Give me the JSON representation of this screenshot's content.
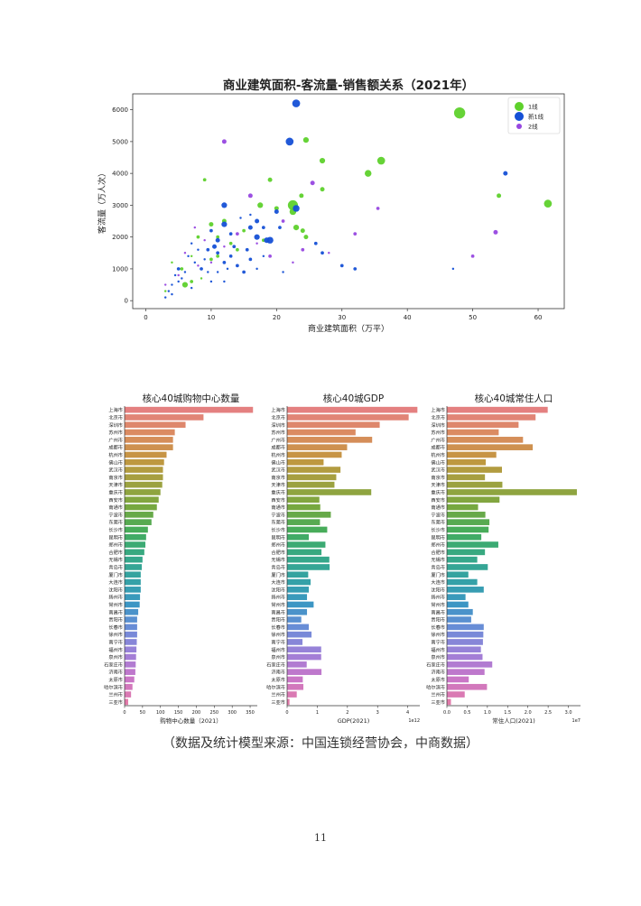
{
  "chart_data": [
    {
      "type": "scatter",
      "title": "商业建筑面积-客流量-销售额关系（2021年）",
      "xlabel": "商业建筑面积（万平）",
      "ylabel": "客流量（万人次）",
      "xlim": [
        -2,
        64
      ],
      "ylim": [
        -250,
        6500
      ],
      "xticks": [
        0,
        10,
        20,
        30,
        40,
        50,
        60
      ],
      "yticks": [
        0,
        1000,
        2000,
        3000,
        4000,
        5000,
        6000
      ],
      "grid": false,
      "legend_position": "top-right",
      "size_meaning": "sales",
      "series": [
        {
          "name": "1线",
          "color": "#5ed12c",
          "points": [
            [
              48,
              5900,
              10
            ],
            [
              61.5,
              3050,
              7
            ],
            [
              36,
              4400,
              7
            ],
            [
              34,
              4000,
              6
            ],
            [
              27,
              4400,
              5
            ],
            [
              24.5,
              5050,
              5
            ],
            [
              22.5,
              3000,
              9
            ],
            [
              22.5,
              2800,
              6
            ],
            [
              54,
              3300,
              4
            ],
            [
              27,
              3500,
              4
            ],
            [
              23.8,
              3300,
              4
            ],
            [
              19,
              3800,
              4
            ],
            [
              17.5,
              3000,
              5
            ],
            [
              20,
              2900,
              4
            ],
            [
              9,
              3800,
              3
            ],
            [
              12,
              2500,
              4
            ],
            [
              10,
              2400,
              4
            ],
            [
              23,
              2300,
              5
            ],
            [
              24,
              2200,
              4
            ],
            [
              24.5,
              2000,
              4
            ],
            [
              15,
              2200,
              3
            ],
            [
              8,
              2000,
              3
            ],
            [
              18,
              1900,
              3
            ],
            [
              11,
              2000,
              3
            ],
            [
              13,
              1800,
              3
            ],
            [
              11,
              1400,
              3
            ],
            [
              14,
              1600,
              3
            ],
            [
              10,
              1300,
              3
            ],
            [
              7,
              1400,
              2
            ],
            [
              6,
              500,
              5
            ],
            [
              5.5,
              1000,
              3
            ],
            [
              7,
              600,
              3
            ],
            [
              4,
              1200,
              2
            ],
            [
              3,
              300,
              2
            ],
            [
              8.5,
              700,
              2
            ]
          ]
        },
        {
          "name": "新1线",
          "color": "#1550d6",
          "points": [
            [
              23,
              6200,
              7
            ],
            [
              22,
              5000,
              7
            ],
            [
              23,
              2900,
              6
            ],
            [
              55,
              4000,
              4
            ],
            [
              12,
              3000,
              5
            ],
            [
              12,
              2400,
              5
            ],
            [
              20,
              2800,
              4
            ],
            [
              19,
              1900,
              6
            ],
            [
              18.5,
              1900,
              5
            ],
            [
              17,
              2000,
              5
            ],
            [
              27,
              1500,
              3
            ],
            [
              30,
              1100,
              3
            ],
            [
              32,
              1000,
              3
            ],
            [
              47,
              1000,
              2
            ],
            [
              16,
              2300,
              4
            ],
            [
              17,
              2500,
              4
            ],
            [
              18,
              2300,
              3
            ],
            [
              13,
              2100,
              3
            ],
            [
              11,
              1900,
              4
            ],
            [
              10,
              2200,
              3
            ],
            [
              10.5,
              1700,
              4
            ],
            [
              9.5,
              1600,
              3
            ],
            [
              11,
              1500,
              3
            ],
            [
              12,
              1200,
              3
            ],
            [
              13,
              1400,
              3
            ],
            [
              14,
              1100,
              3
            ],
            [
              15,
              900,
              3
            ],
            [
              15.5,
              1600,
              3
            ],
            [
              16,
              1300,
              3
            ],
            [
              13.5,
              1700,
              3
            ],
            [
              12.5,
              1000,
              2
            ],
            [
              8.5,
              1000,
              3
            ],
            [
              9.5,
              900,
              2
            ],
            [
              7.5,
              1200,
              2
            ],
            [
              8,
              1600,
              2
            ],
            [
              6.5,
              1400,
              2
            ],
            [
              7,
              1800,
              2
            ],
            [
              5,
              1000,
              3
            ],
            [
              4.5,
              800,
              2
            ],
            [
              5.5,
              700,
              2
            ],
            [
              6,
              900,
              2
            ],
            [
              4,
              500,
              2
            ],
            [
              3.5,
              300,
              2
            ],
            [
              3,
              100,
              2
            ],
            [
              4,
              200,
              2
            ],
            [
              5,
              600,
              2
            ],
            [
              9,
              1300,
              2
            ],
            [
              11,
              900,
              2
            ],
            [
              17,
              1000,
              2
            ],
            [
              21,
              900,
              2
            ],
            [
              26,
              1800,
              3
            ],
            [
              14.5,
              2600,
              2
            ],
            [
              16,
              2700,
              2
            ],
            [
              20.5,
              2300,
              3
            ],
            [
              18,
              1400,
              2
            ],
            [
              10,
              600,
              2
            ],
            [
              12,
              600,
              2
            ],
            [
              7,
              400,
              2
            ]
          ]
        },
        {
          "name": "2线",
          "color": "#9747e0",
          "points": [
            [
              12,
              5000,
              4
            ],
            [
              16,
              3300,
              4
            ],
            [
              25.5,
              3700,
              4
            ],
            [
              35.5,
              2900,
              3
            ],
            [
              53.5,
              2150,
              4
            ],
            [
              50,
              1400,
              3
            ],
            [
              32,
              2100,
              3
            ],
            [
              21,
              2500,
              3
            ],
            [
              14,
              2100,
              3
            ],
            [
              19,
              1400,
              3
            ],
            [
              24,
              1600,
              3
            ],
            [
              28,
              1500,
              2
            ],
            [
              9,
              1900,
              2
            ],
            [
              8,
              1100,
              2
            ],
            [
              6,
              1500,
              2
            ],
            [
              5,
              800,
              2
            ],
            [
              12,
              1700,
              2
            ],
            [
              3,
              500,
              2
            ],
            [
              10,
              1200,
              2
            ],
            [
              17,
              1800,
              2
            ],
            [
              22.5,
              1200,
              2
            ],
            [
              7.5,
              2300,
              2
            ]
          ]
        }
      ]
    },
    {
      "type": "bar",
      "orientation": "horizontal",
      "title": "核心40城购物中心数量",
      "xlabel": "购物中心数量（2021）",
      "ylabel": "",
      "xlim": [
        0,
        370
      ],
      "xticks": [
        0,
        50,
        100,
        150,
        200,
        250,
        300,
        350
      ],
      "offset_label": "",
      "categories": [
        "上海市",
        "北京市",
        "深圳市",
        "苏州市",
        "广州市",
        "成都市",
        "杭州市",
        "佛山市",
        "武汉市",
        "南京市",
        "天津市",
        "重庆市",
        "西安市",
        "南通市",
        "宁波市",
        "东莞市",
        "长沙市",
        "昆明市",
        "郑州市",
        "合肥市",
        "无锡市",
        "青岛市",
        "厦门市",
        "大连市",
        "沈阳市",
        "扬州市",
        "常州市",
        "南昌市",
        "贵阳市",
        "长春市",
        "徐州市",
        "南宁市",
        "福州市",
        "泉州市",
        "石家庄市",
        "济南市",
        "太原市",
        "哈尔滨市",
        "兰州市",
        "三亚市"
      ],
      "values": [
        358,
        220,
        170,
        140,
        135,
        135,
        117,
        110,
        107,
        107,
        105,
        100,
        95,
        90,
        80,
        75,
        65,
        60,
        58,
        55,
        50,
        48,
        45,
        45,
        45,
        43,
        42,
        38,
        35,
        35,
        35,
        34,
        33,
        32,
        31,
        30,
        27,
        22,
        18,
        10
      ]
    },
    {
      "type": "bar",
      "orientation": "horizontal",
      "title": "核心40城GDP",
      "xlabel": "GDP(2021)",
      "ylabel": "",
      "xlim": [
        0,
        4.4
      ],
      "xticks": [
        0,
        1,
        2,
        3,
        4
      ],
      "offset_label": "1e12",
      "categories": [
        "上海市",
        "北京市",
        "深圳市",
        "苏州市",
        "广州市",
        "成都市",
        "杭州市",
        "佛山市",
        "武汉市",
        "南京市",
        "天津市",
        "重庆市",
        "西安市",
        "南通市",
        "宁波市",
        "东莞市",
        "长沙市",
        "昆明市",
        "郑州市",
        "合肥市",
        "无锡市",
        "青岛市",
        "厦门市",
        "大连市",
        "沈阳市",
        "扬州市",
        "常州市",
        "南昌市",
        "贵阳市",
        "长春市",
        "徐州市",
        "南宁市",
        "福州市",
        "泉州市",
        "石家庄市",
        "济南市",
        "太原市",
        "哈尔滨市",
        "兰州市",
        "三亚市"
      ],
      "values": [
        4.32,
        4.03,
        3.07,
        2.27,
        2.82,
        1.99,
        1.81,
        1.21,
        1.77,
        1.63,
        1.57,
        2.79,
        1.07,
        1.1,
        1.45,
        1.09,
        1.33,
        0.72,
        1.27,
        1.14,
        1.4,
        1.41,
        0.7,
        0.78,
        0.72,
        0.66,
        0.88,
        0.66,
        0.47,
        0.72,
        0.81,
        0.51,
        1.13,
        1.13,
        0.65,
        1.14,
        0.52,
        0.54,
        0.32,
        0.08
      ]
    },
    {
      "type": "bar",
      "orientation": "horizontal",
      "title": "核心40城常住人口",
      "xlabel": "常住人口(2021)",
      "ylabel": "",
      "xlim": [
        0,
        3.3
      ],
      "xticks": [
        0,
        0.5,
        1.0,
        1.5,
        2.0,
        2.5,
        3.0
      ],
      "offset_label": "1e7",
      "categories": [
        "上海市",
        "北京市",
        "深圳市",
        "苏州市",
        "广州市",
        "成都市",
        "杭州市",
        "佛山市",
        "武汉市",
        "南京市",
        "天津市",
        "重庆市",
        "西安市",
        "南通市",
        "宁波市",
        "东莞市",
        "长沙市",
        "昆明市",
        "郑州市",
        "合肥市",
        "无锡市",
        "青岛市",
        "厦门市",
        "大连市",
        "沈阳市",
        "扬州市",
        "常州市",
        "南昌市",
        "贵阳市",
        "长春市",
        "徐州市",
        "南宁市",
        "福州市",
        "泉州市",
        "石家庄市",
        "济南市",
        "太原市",
        "哈尔滨市",
        "兰州市",
        "三亚市"
      ],
      "values": [
        2.49,
        2.19,
        1.77,
        1.28,
        1.88,
        2.12,
        1.22,
        0.96,
        1.36,
        0.94,
        1.37,
        3.21,
        1.3,
        0.77,
        0.95,
        1.05,
        1.03,
        0.85,
        1.27,
        0.94,
        0.75,
        1.01,
        0.53,
        0.75,
        0.91,
        0.46,
        0.53,
        0.64,
        0.6,
        0.91,
        0.9,
        0.89,
        0.84,
        0.88,
        1.12,
        0.93,
        0.54,
        0.99,
        0.44,
        0.1
      ]
    }
  ],
  "caption": "（数据及统计模型来源：中国连锁经营协会，中商数据）",
  "page_number": "11"
}
